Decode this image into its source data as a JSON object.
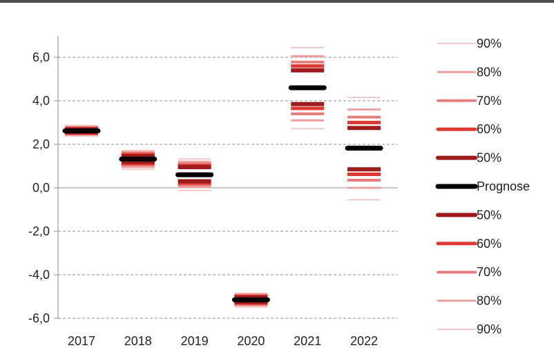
{
  "chart_data": {
    "type": "fan chart",
    "categories": [
      "2017",
      "2018",
      "2019",
      "2020",
      "2021",
      "2022"
    ],
    "y_ticks": [
      "6,0",
      "4,0",
      "2,0",
      "0,0",
      "-2,0",
      "-4,0",
      "-6,0"
    ],
    "y_tick_values": [
      6,
      4,
      2,
      0,
      -2,
      -4,
      -6
    ],
    "ylim": [
      -6.0,
      7.0
    ],
    "grid": true,
    "legend_position": "right",
    "legend": [
      {
        "label": "90%",
        "color": "#f4c6c6"
      },
      {
        "label": "80%",
        "color": "#ee9f9f"
      },
      {
        "label": "70%",
        "color": "#e57d7d"
      },
      {
        "label": "60%",
        "color": "#de3a33"
      },
      {
        "label": "50%",
        "color": "#9e1b1b"
      },
      {
        "label": "Prognose",
        "color": "#000000"
      },
      {
        "label": "50%",
        "color": "#9e1b1b"
      },
      {
        "label": "60%",
        "color": "#de3a33"
      },
      {
        "label": "70%",
        "color": "#e57d7d"
      },
      {
        "label": "80%",
        "color": "#ee9f9f"
      },
      {
        "label": "90%",
        "color": "#f4c6c6"
      }
    ],
    "series": [
      {
        "name": "Prognose",
        "values": [
          2.62,
          1.32,
          0.6,
          -5.15,
          4.6,
          1.82
        ]
      },
      {
        "name": "50%",
        "upper": [
          2.68,
          1.45,
          0.95,
          -5.05,
          5.4,
          2.75
        ],
        "lower": [
          2.56,
          1.2,
          0.3,
          -5.25,
          3.85,
          0.85
        ]
      },
      {
        "name": "60%",
        "upper": [
          2.72,
          1.52,
          1.02,
          -5.0,
          5.6,
          3.0
        ],
        "lower": [
          2.52,
          1.12,
          0.22,
          -5.3,
          3.65,
          0.62
        ]
      },
      {
        "name": "70%",
        "upper": [
          2.76,
          1.58,
          1.1,
          -4.95,
          5.78,
          3.25
        ],
        "lower": [
          2.48,
          1.05,
          0.14,
          -5.35,
          3.4,
          0.35
        ]
      },
      {
        "name": "80%",
        "upper": [
          2.8,
          1.64,
          1.2,
          -4.9,
          6.05,
          3.6
        ],
        "lower": [
          2.44,
          0.96,
          0.04,
          -5.4,
          3.1,
          0.0
        ]
      },
      {
        "name": "90%",
        "upper": [
          2.86,
          1.72,
          1.32,
          -4.85,
          6.45,
          4.15
        ],
        "lower": [
          2.38,
          0.86,
          -0.12,
          -5.48,
          2.72,
          -0.55
        ]
      }
    ]
  }
}
